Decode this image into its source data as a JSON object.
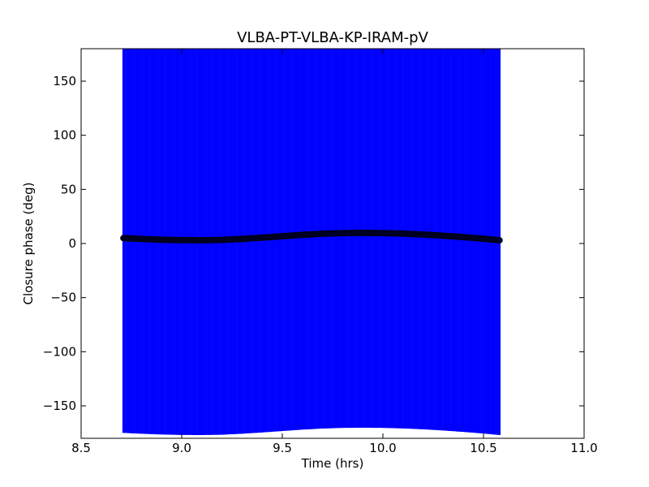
{
  "chart_data": {
    "type": "scatter",
    "title": "VLBA-PT-VLBA-KP-IRAM-pV",
    "xlabel": "Time (hrs)",
    "ylabel": "Closure phase (deg)",
    "xlim": [
      8.5,
      11.0
    ],
    "ylim": [
      -180,
      180
    ],
    "xticks": [
      8.5,
      9.0,
      9.5,
      10.0,
      10.5,
      11.0
    ],
    "xtick_labels": [
      "8.5",
      "9.0",
      "9.5",
      "10.0",
      "10.5",
      "11.0"
    ],
    "yticks": [
      -150,
      -100,
      -50,
      0,
      50,
      100,
      150
    ],
    "ytick_labels": [
      "−150",
      "−100",
      "−50",
      "0",
      "50",
      "100",
      "150"
    ],
    "grid": false,
    "errorbar_half_width_deg": 180,
    "colors": {
      "errorbar": "#0000ff",
      "points": "#000033",
      "axes": "#000000"
    },
    "series": [
      {
        "x": [
          8.71,
          8.8,
          8.9,
          9.0,
          9.1,
          9.2,
          9.3,
          9.4,
          9.5,
          9.6,
          9.7,
          9.8,
          9.9,
          10.0,
          10.1,
          10.2,
          10.3,
          10.4,
          10.5,
          10.58
        ],
        "y": [
          5,
          4.2,
          3.5,
          3.1,
          3.0,
          3.3,
          4.2,
          5.4,
          6.7,
          8.0,
          9.0,
          9.6,
          9.8,
          9.6,
          9.1,
          8.3,
          7.2,
          5.9,
          4.4,
          3
        ]
      }
    ]
  }
}
